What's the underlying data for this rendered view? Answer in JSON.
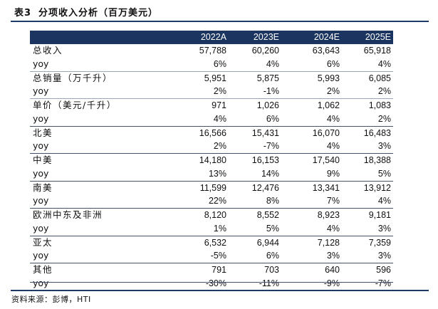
{
  "title": {
    "prefix": "表3",
    "text": "分项收入分析（百万美元）"
  },
  "table": {
    "headers": [
      "2022A",
      "2023E",
      "2024E",
      "2025E"
    ],
    "rows": [
      {
        "label": "总收入",
        "values": [
          "57,788",
          "60,260",
          "63,643",
          "65,918"
        ]
      },
      {
        "label": "yoy",
        "values": [
          "6%",
          "4%",
          "6%",
          "4%"
        ]
      },
      {
        "label": "总销量（万千升）",
        "values": [
          "5,951",
          "5,875",
          "5,993",
          "6,085"
        ]
      },
      {
        "label": "yoy",
        "values": [
          "2%",
          "-1%",
          "2%",
          "2%"
        ]
      },
      {
        "label": "单价（美元/千升）",
        "values": [
          "971",
          "1,026",
          "1,062",
          "1,083"
        ]
      },
      {
        "label": "yoy",
        "values": [
          "4%",
          "6%",
          "4%",
          "2%"
        ]
      },
      {
        "label": "北美",
        "values": [
          "16,566",
          "15,431",
          "16,070",
          "16,483"
        ]
      },
      {
        "label": "yoy",
        "values": [
          "2%",
          "-7%",
          "4%",
          "3%"
        ]
      },
      {
        "label": "中美",
        "values": [
          "14,180",
          "16,153",
          "17,540",
          "18,388"
        ]
      },
      {
        "label": "yoy",
        "values": [
          "13%",
          "14%",
          "9%",
          "5%"
        ]
      },
      {
        "label": "南美",
        "values": [
          "11,599",
          "12,476",
          "13,341",
          "13,912"
        ]
      },
      {
        "label": "yoy",
        "values": [
          "22%",
          "8%",
          "7%",
          "4%"
        ]
      },
      {
        "label": "欧洲中东及非洲",
        "values": [
          "8,120",
          "8,552",
          "8,923",
          "9,181"
        ]
      },
      {
        "label": "yoy",
        "values": [
          "1%",
          "5%",
          "4%",
          "3%"
        ]
      },
      {
        "label": "亚太",
        "values": [
          "6,532",
          "6,944",
          "7,128",
          "7,359"
        ]
      },
      {
        "label": "yoy",
        "values": [
          "-5%",
          "6%",
          "3%",
          "3%"
        ]
      },
      {
        "label": "其他",
        "values": [
          "791",
          "703",
          "640",
          "596"
        ]
      },
      {
        "label": "yoy",
        "values": [
          "-30%",
          "-11%",
          "-9%",
          "-7%"
        ]
      }
    ]
  },
  "source": "资料来源：彭博，HTI"
}
